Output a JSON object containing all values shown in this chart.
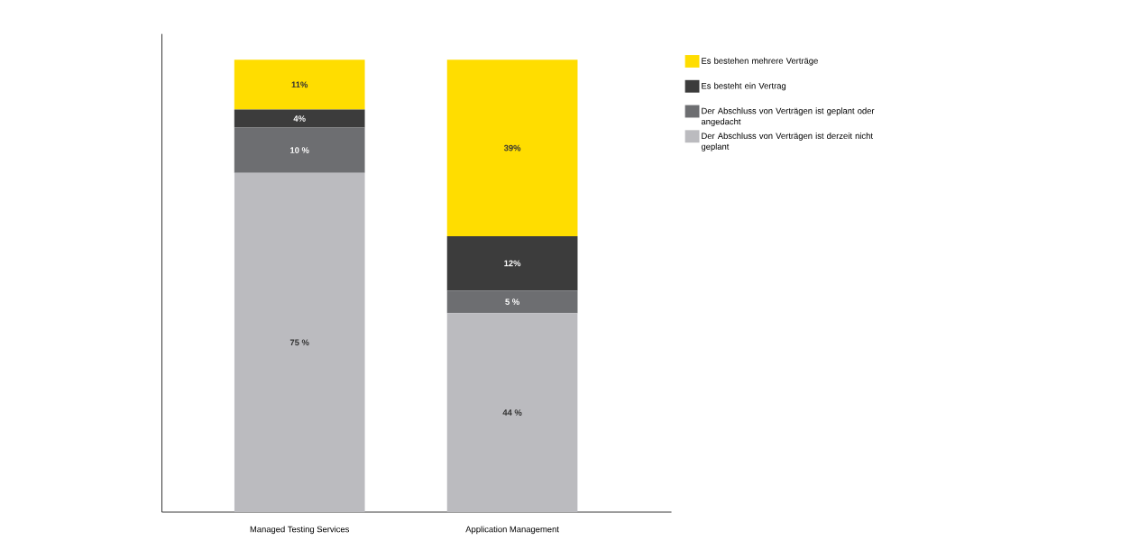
{
  "chart_data": {
    "type": "bar",
    "stacked": true,
    "legend": "right",
    "categories": [
      "Managed Testing Services",
      "Application Management"
    ],
    "series": [
      {
        "name": "Der Abschluss von Verträgen ist derzeit nicht geplant",
        "color": "#bbbbbf",
        "values": [
          75,
          44
        ],
        "value_labels": [
          "75 %",
          "44 %"
        ]
      },
      {
        "name": "Der Abschluss von Verträgen ist geplant oder angedacht",
        "color": "#6d6e71",
        "values": [
          10,
          5
        ],
        "value_labels": [
          "10 %",
          "5 %"
        ]
      },
      {
        "name": "Es besteht ein Vertrag",
        "color": "#3c3c3c",
        "values": [
          4,
          12
        ],
        "value_labels": [
          "4%",
          "12%"
        ]
      },
      {
        "name": "Es bestehen mehrere Verträge",
        "color": "#ffdd00",
        "values": [
          11,
          39
        ],
        "value_labels": [
          "11%",
          "39%"
        ]
      }
    ]
  }
}
